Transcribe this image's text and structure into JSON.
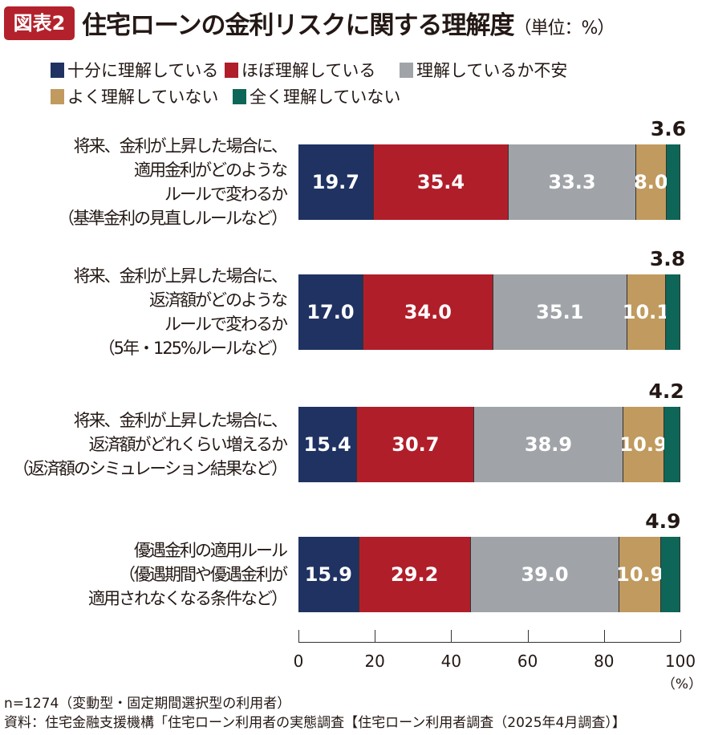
{
  "header": {
    "badge": "図表2",
    "title": "住宅ローンの金利リスクに関する理解度",
    "unit": "（単位：%）"
  },
  "chart_data": {
    "type": "bar",
    "orientation": "horizontal",
    "stacked": true,
    "categories": [
      [
        "将来、金利が上昇した場合に、",
        "適用金利がどのような",
        "ルールで変わるか",
        "（基準金利の見直しルールなど）"
      ],
      [
        "将来、金利が上昇した場合に、",
        "返済額がどのような",
        "ルールで変わるか",
        "（5年・125%ルールなど）"
      ],
      [
        "将来、金利が上昇した場合に、",
        "返済額がどれくらい増えるか",
        "（返済額のシミュレーション結果など）"
      ],
      [
        "優遇金利の適用ルール",
        "（優遇期間や優遇金利が",
        "適用されなくなる条件など）"
      ]
    ],
    "series": [
      {
        "name": "十分に理解している",
        "color": "#1f3262",
        "values": [
          19.7,
          17.0,
          15.4,
          15.9
        ]
      },
      {
        "name": "ほぼ理解している",
        "color": "#b01e2a",
        "values": [
          35.4,
          34.0,
          30.7,
          29.2
        ]
      },
      {
        "name": "理解しているか不安",
        "color": "#a0a4a8",
        "values": [
          33.3,
          35.1,
          38.9,
          39.0
        ]
      },
      {
        "name": "よく理解していない",
        "color": "#c09a5e",
        "values": [
          8.0,
          10.1,
          10.9,
          10.9
        ]
      },
      {
        "name": "全く理解していない",
        "color": "#0d6657",
        "values": [
          3.6,
          3.8,
          4.2,
          4.9
        ]
      }
    ],
    "xlim": [
      0,
      100
    ],
    "xticks": [
      "0",
      "20",
      "40",
      "60",
      "80",
      "100"
    ],
    "xunit": "（%）",
    "legend": "top"
  },
  "footer": {
    "note": "n=1274（変動型・固定期間選択型の利用者）",
    "source": "資料：住宅金融支援機構「住宅ローン利用者の実態調査【住宅ローン利用者調査（2025年4月調査）】"
  }
}
